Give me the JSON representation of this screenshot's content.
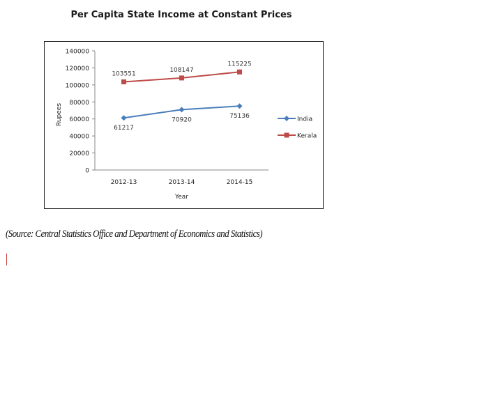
{
  "page": {
    "source_note": "(Source: Central Statistics Office and Department of Economics and Statistics)"
  },
  "chart_data": {
    "type": "line",
    "title": "Per Capita State Income at Constant Prices",
    "xlabel": "Year",
    "ylabel": "Rupees",
    "categories": [
      "2012-13",
      "2013-14",
      "2014-15"
    ],
    "ylim": [
      0,
      140000
    ],
    "yticks": [
      0,
      20000,
      40000,
      60000,
      80000,
      100000,
      120000,
      140000
    ],
    "legend_position": "right",
    "grid": false,
    "series": [
      {
        "name": "India",
        "values": [
          61217,
          70920,
          75136
        ],
        "color": "#4a7ebb",
        "marker": "diamond"
      },
      {
        "name": "Kerala",
        "values": [
          103551,
          108147,
          115225
        ],
        "color": "#be4b48",
        "marker": "square"
      }
    ]
  }
}
